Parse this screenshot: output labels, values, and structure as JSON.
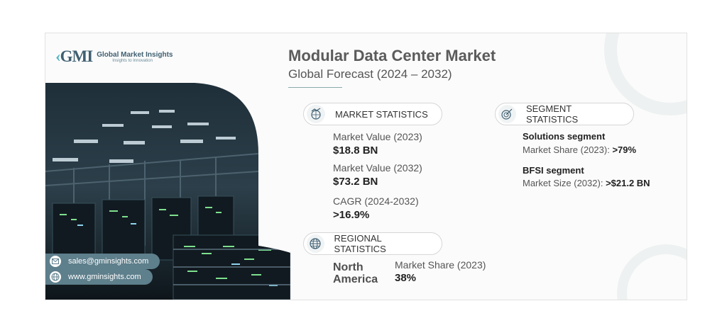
{
  "brand": {
    "name": "Global Market Insights",
    "tagline": "Insights to Innovation",
    "mark": "GMI"
  },
  "header": {
    "title": "Modular Data Center Market",
    "subtitle": "Global Forecast (2024 – 2032)"
  },
  "market_statistics": {
    "heading": "MARKET STATISTICS",
    "icon": "chart-globe-icon",
    "items": [
      {
        "label": "Market Value (2023)",
        "value": "$18.8 BN"
      },
      {
        "label": "Market Value (2032)",
        "value": "$73.2 BN"
      },
      {
        "label": "CAGR (2024-2032)",
        "value": ">16.9%"
      }
    ]
  },
  "segment_statistics": {
    "heading": "SEGMENT STATISTICS",
    "icon": "target-chart-icon",
    "items": [
      {
        "title": "Solutions segment",
        "metric": "Market Share (2023):",
        "value": ">79%"
      },
      {
        "title": "BFSI segment",
        "metric": "Market Size (2032):",
        "value": ">$21.2 BN"
      }
    ]
  },
  "regional_statistics": {
    "heading": "REGIONAL STATISTICS",
    "icon": "globe-icon",
    "region": "North America",
    "metric": "Market Share (2023)",
    "value": "38%"
  },
  "contact": {
    "email": "sales@gminsights.com",
    "website": "www.gminsights.com"
  },
  "colors": {
    "accent": "#4fb6c6",
    "brand": "#3f5f71",
    "pill": "#5e7f8c"
  }
}
